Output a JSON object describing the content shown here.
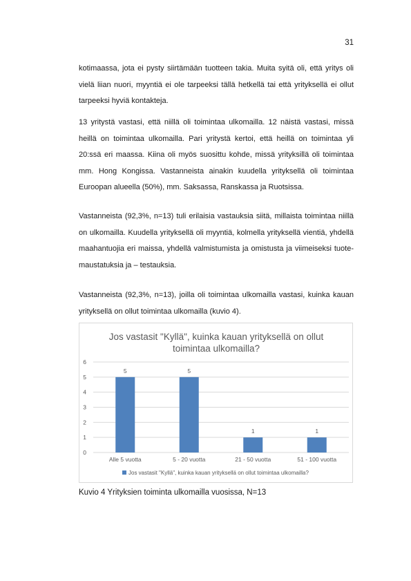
{
  "page_number": "31",
  "paragraphs": [
    "kotimaassa, jota ei pysty siirtämään tuotteen takia. Muita syitä oli, että yritys oli vielä liian nuori, myyntiä ei ole tarpeeksi tällä hetkellä tai että yrityksellä ei ollut tarpeeksi hyviä kontakteja.",
    "13 yritystä vastasi, että niillä oli toimintaa ulkomailla. 12 näistä vastasi, missä heillä on toimintaa ulkomailla. Pari yritystä kertoi, että heillä on toimintaa yli 20:ssä eri maassa. Kiina oli myös suosittu kohde, missä yrityksillä oli toimintaa mm. Hong Kongissa. Vastanneista ainakin kuudella yrityksellä oli toimintaa Euroopan alueella (50%), mm. Saksassa, Ranskassa ja Ruotsissa.",
    "Vastanneista (92,3%, n=13) tuli erilaisia vastauksia siitä, millaista toimintaa niillä on ulkomailla. Kuudella yrityksellä oli myyntiä, kolmella yrityksellä vientiä, yhdellä maahantuojia eri maissa, yhdellä valmistumista ja omistusta ja viimeiseksi tuote-maustatuksia ja – testauksia.",
    "Vastanneista (92,3%, n=13), joilla oli toimintaa ulkomailla vastasi, kuinka kauan yrityksellä on ollut toimintaa ulkomailla (kuvio 4)."
  ],
  "chart_data": {
    "type": "bar",
    "title": "Jos vastasit \"Kyllä\", kuinka kauan yrityksellä on ollut toimintaa ulkomailla?",
    "title_lines": [
      "Jos vastasit \"Kyllä\", kuinka kauan yrityksellä on ollut",
      "toimintaa ulkomailla?"
    ],
    "categories": [
      "Alle 5 vuotta",
      "5 - 20 vuotta",
      "21 - 50 vuotta",
      "51 - 100 vuotta"
    ],
    "values": [
      5,
      5,
      1,
      1
    ],
    "series": [
      {
        "name": "Jos vastasit \"Kyllä\", kuinka kauan yrityksellä on ollut toimintaa ulkomailla?",
        "values": [
          5,
          5,
          1,
          1
        ]
      }
    ],
    "ylim": [
      0,
      6
    ],
    "yticks": [
      "0",
      "1",
      "2",
      "3",
      "4",
      "5",
      "6"
    ],
    "data_labels": [
      "5",
      "5",
      "1",
      "1"
    ],
    "grid": true,
    "legend": "bottom",
    "xlabel": "",
    "ylabel": "",
    "colors": {
      "bar": "#4f81bd",
      "grid": "#d9d9d9",
      "text": "#595959",
      "title": "#595959"
    }
  },
  "caption": "Kuvio 4 Yrityksien toiminta ulkomailla vuosissa, N=13"
}
